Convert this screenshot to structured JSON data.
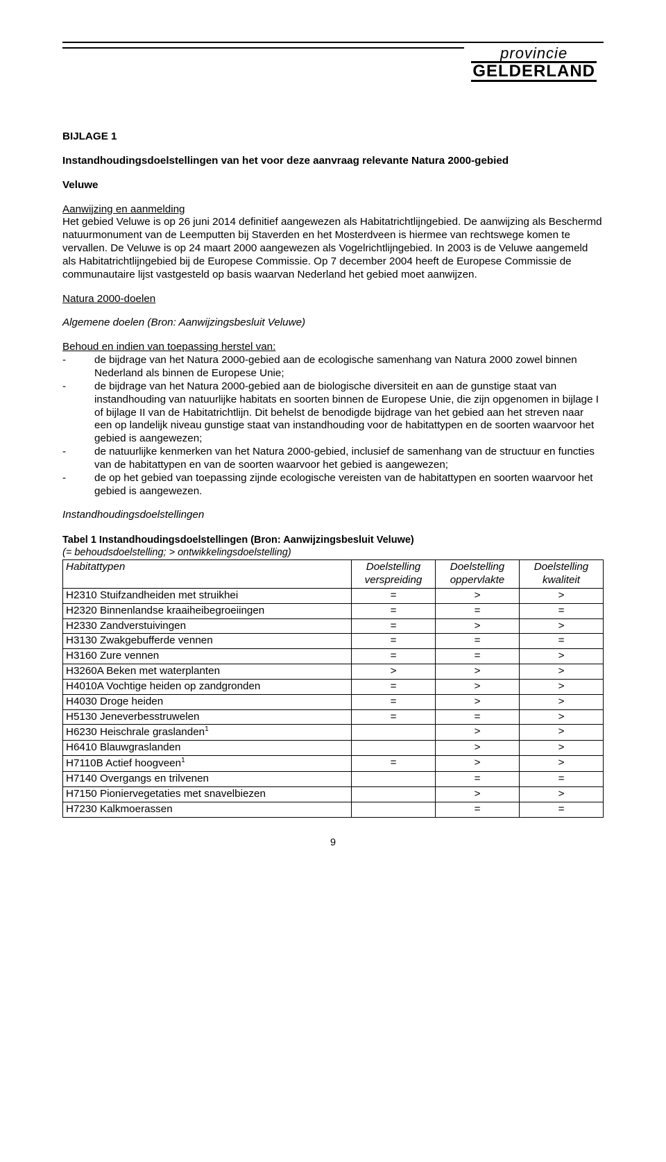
{
  "logo": {
    "top": "provincie",
    "name": "GELDERLAND"
  },
  "title": "BIJLAGE 1",
  "subtitle": "Instandhoudingsdoelstellingen van het voor deze aanvraag relevante Natura 2000-gebied",
  "region": "Veluwe",
  "section_aanwijzing_heading": "Aanwijzing en aanmelding",
  "section_aanwijzing_body": "Het gebied Veluwe is op 26 juni 2014 definitief aangewezen als Habitatrichtlijngebied. De aanwijzing als Beschermd natuurmonument van de Leemputten bij Staverden en het Mosterdveen is hiermee van rechtswege komen te vervallen. De Veluwe is op 24 maart 2000 aangewezen als Vogelrichtlijngebied. In 2003 is de Veluwe aangemeld als Habitatrichtlijngebied bij de Europese Commissie. Op 7 december 2004 heeft de Europese Commissie de communautaire lijst vastgesteld op basis waarvan Nederland het gebied moet aanwijzen.",
  "section_natura_heading": "Natura 2000-doelen",
  "section_algemene_heading": "Algemene doelen (Bron: Aanwijzingsbesluit Veluwe)",
  "section_behoud_heading": "Behoud en indien van toepassing herstel van:",
  "behoud_items": [
    "de bijdrage van het Natura 2000-gebied aan de ecologische samenhang van Natura 2000 zowel binnen Nederland als binnen de Europese Unie;",
    "de bijdrage van het Natura 2000-gebied aan de biologische diversiteit en aan de gunstige staat van instandhouding van natuurlijke habitats en soorten binnen de Europese Unie, die zijn opgenomen in bijlage I of bijlage II van de Habitatrichtlijn. Dit behelst de benodigde bijdrage van het gebied aan het streven naar een op landelijk niveau gunstige staat van instandhouding voor de habitattypen en de soorten waarvoor het gebied is aangewezen;",
    "de natuurlijke kenmerken van het Natura 2000-gebied, inclusief de samenhang van de structuur en functies van de habitattypen en van de soorten waarvoor het gebied is aangewezen;",
    "de op het gebied van toepassing zijnde ecologische vereisten van de habitattypen en soorten waarvoor het gebied is aangewezen."
  ],
  "instandhoudings_heading": "Instandhoudingsdoelstellingen",
  "table_caption_bold": "Tabel 1 Instandhoudingsdoelstellingen (Bron: Aanwijzingsbesluit Veluwe)",
  "table_caption_italic": "(= behoudsdoelstelling; > ontwikkelingsdoelstelling)",
  "table_headers": {
    "col1": "Habitattypen",
    "col2a": "Doelstelling",
    "col2b": "verspreiding",
    "col3a": "Doelstelling",
    "col3b": "oppervlakte",
    "col4a": "Doelstelling",
    "col4b": "kwaliteit"
  },
  "table_rows": [
    {
      "name": "H2310 Stuifzandheiden met struikhei",
      "v": "=",
      "o": ">",
      "k": ">"
    },
    {
      "name": "H2320 Binnenlandse kraaiheibegroeiingen",
      "v": "=",
      "o": "=",
      "k": "="
    },
    {
      "name": "H2330 Zandverstuivingen",
      "v": "=",
      "o": ">",
      "k": ">"
    },
    {
      "name": "H3130 Zwakgebufferde vennen",
      "v": "=",
      "o": "=",
      "k": "="
    },
    {
      "name": "H3160 Zure vennen",
      "v": "=",
      "o": "=",
      "k": ">"
    },
    {
      "name": "H3260A Beken met waterplanten",
      "v": ">",
      "o": ">",
      "k": ">"
    },
    {
      "name": "H4010A Vochtige heiden op zandgronden",
      "v": "=",
      "o": ">",
      "k": ">"
    },
    {
      "name": "H4030 Droge heiden",
      "v": "=",
      "o": ">",
      "k": ">"
    },
    {
      "name": "H5130 Jeneverbesstruwelen",
      "v": "=",
      "o": "=",
      "k": ">"
    },
    {
      "name": "H6230 Heischrale graslanden",
      "sup": "1",
      "v": "",
      "o": ">",
      "k": ">"
    },
    {
      "name": "H6410 Blauwgraslanden",
      "v": "",
      "o": ">",
      "k": ">"
    },
    {
      "name": "H7110B Actief hoogveen",
      "sup": "1",
      "v": "=",
      "o": ">",
      "k": ">"
    },
    {
      "name": "H7140 Overgangs en trilvenen",
      "v": "",
      "o": "=",
      "k": "="
    },
    {
      "name": "H7150 Pioniervegetaties met snavelbiezen",
      "v": "",
      "o": ">",
      "k": ">"
    },
    {
      "name": "H7230 Kalkmoerassen",
      "v": "",
      "o": "=",
      "k": "="
    }
  ],
  "page_number": "9"
}
